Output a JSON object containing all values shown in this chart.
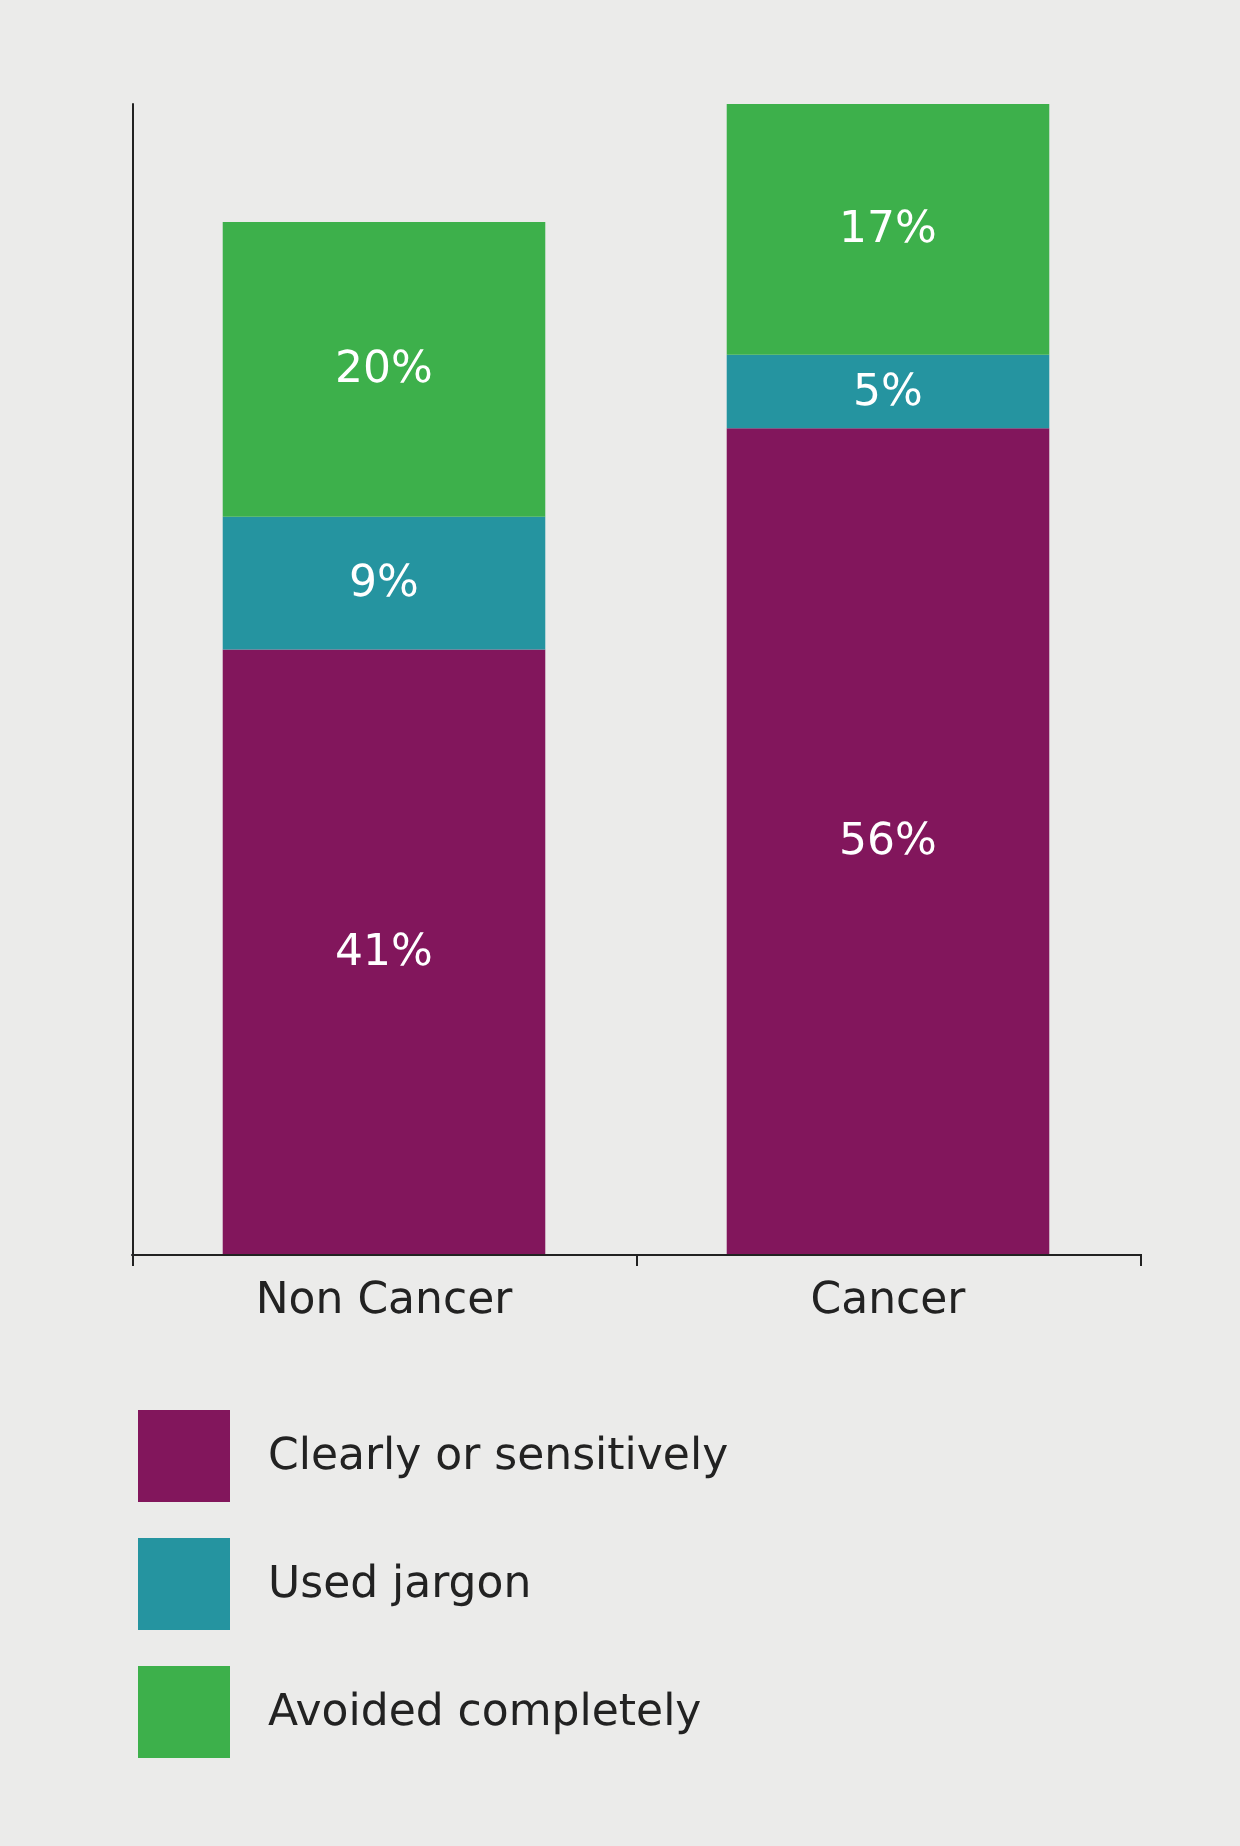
{
  "chart_data": {
    "type": "bar",
    "stacked": true,
    "categories": [
      "Non Cancer",
      "Cancer"
    ],
    "series": [
      {
        "name": "Clearly or sensitively",
        "color": "#82165c",
        "values": [
          41,
          56
        ],
        "value_labels": [
          "41%",
          "56%"
        ]
      },
      {
        "name": "Used jargon",
        "color": "#2594a0",
        "values": [
          9,
          5
        ],
        "value_labels": [
          "9%",
          "5%"
        ]
      },
      {
        "name": "Avoided completely",
        "color": "#3db04b",
        "values": [
          20,
          17
        ],
        "value_labels": [
          "20%",
          "17%"
        ]
      }
    ],
    "legend": "bottom left",
    "grid": false,
    "tick_labels": "x"
  }
}
